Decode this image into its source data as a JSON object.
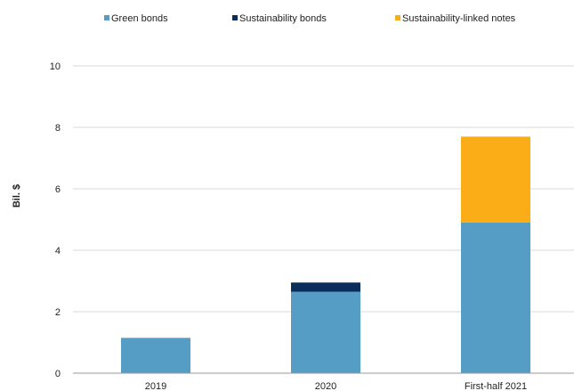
{
  "chart_data": {
    "type": "bar",
    "stacked": true,
    "categories": [
      "2019",
      "2020",
      "First-half 2021"
    ],
    "series": [
      {
        "name": "Green bonds",
        "values": [
          1.15,
          2.65,
          4.9
        ],
        "color": "#559dc5"
      },
      {
        "name": "Sustainability bonds",
        "values": [
          0,
          0.3,
          0
        ],
        "color": "#0b2d5c"
      },
      {
        "name": "Sustainability-linked notes",
        "values": [
          0,
          0,
          2.8
        ],
        "color": "#fbad18"
      }
    ],
    "ylabel": "Bil. $",
    "ylim": [
      0,
      10
    ],
    "yticks": [
      0,
      2,
      4,
      6,
      8,
      10
    ],
    "grid": true,
    "legend_position": "top"
  }
}
